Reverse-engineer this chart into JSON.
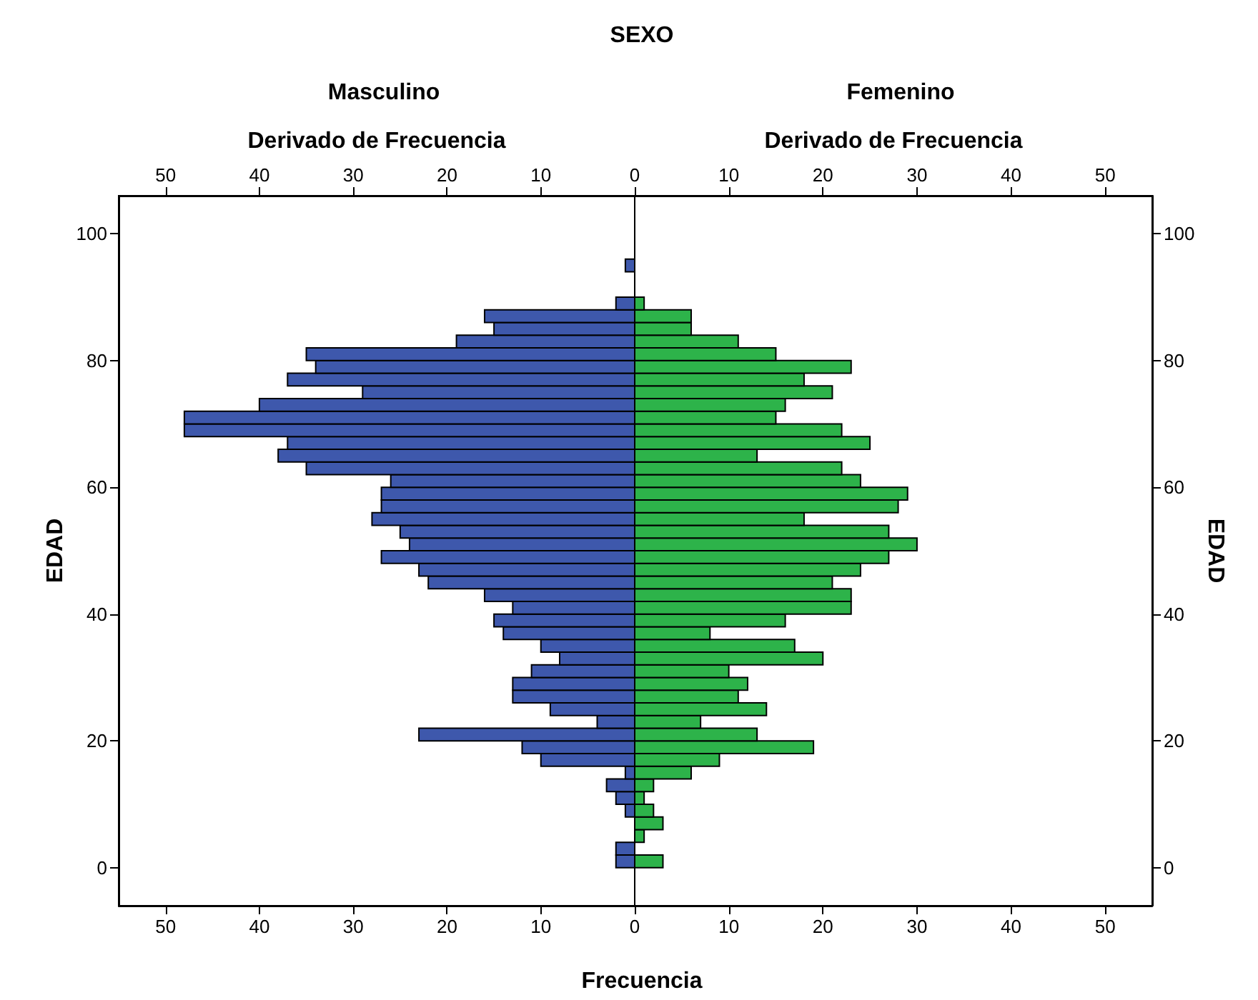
{
  "chart_data": [
    {
      "type": "histogram",
      "orientation": "horizontal",
      "title": "Masculino",
      "annotations": [
        "SEXO"
      ],
      "xlabel": "Frecuencia",
      "x2label": "Derivado de Frecuencia",
      "ylabel": "EDAD",
      "color": "#3e58ac",
      "bins": [
        0,
        2,
        4,
        6,
        8,
        10,
        12,
        14,
        16,
        18,
        20,
        22,
        24,
        26,
        28,
        30,
        32,
        34,
        36,
        38,
        40,
        42,
        44,
        46,
        48,
        50,
        52,
        54,
        56,
        58,
        60,
        62,
        64,
        66,
        68,
        70,
        72,
        74,
        76,
        78,
        80,
        82,
        84,
        86,
        88,
        90,
        92,
        94,
        96
      ],
      "values": [
        2,
        2,
        0,
        0,
        1,
        2,
        3,
        1,
        10,
        12,
        23,
        4,
        9,
        13,
        13,
        11,
        8,
        10,
        14,
        15,
        13,
        16,
        22,
        23,
        27,
        24,
        25,
        28,
        27,
        27,
        26,
        35,
        38,
        37,
        48,
        48,
        40,
        29,
        37,
        34,
        35,
        19,
        15,
        16,
        2,
        0,
        0,
        1
      ],
      "xlim": [
        55,
        0
      ],
      "xticks": [
        50,
        40,
        30,
        20,
        10,
        0
      ],
      "x2lim": [
        55,
        0
      ],
      "x2ticks": [
        50,
        40,
        30,
        20,
        10,
        0
      ],
      "ylim": [
        -6,
        106
      ],
      "yticks": [
        0,
        20,
        40,
        60,
        80,
        100
      ],
      "grid": false
    },
    {
      "type": "histogram",
      "orientation": "horizontal",
      "title": "Femenino",
      "x2label": "Derivado de Frecuencia",
      "ylabel": "EDAD",
      "color": "#2db34a",
      "bins": [
        0,
        2,
        4,
        6,
        8,
        10,
        12,
        14,
        16,
        18,
        20,
        22,
        24,
        26,
        28,
        30,
        32,
        34,
        36,
        38,
        40,
        42,
        44,
        46,
        48,
        50,
        52,
        54,
        56,
        58,
        60,
        62,
        64,
        66,
        68,
        70,
        72,
        74,
        76,
        78,
        80,
        82,
        84,
        86,
        88,
        90,
        92,
        94,
        96
      ],
      "values": [
        3,
        0,
        1,
        3,
        2,
        1,
        2,
        6,
        9,
        19,
        13,
        7,
        14,
        11,
        12,
        10,
        20,
        17,
        8,
        16,
        23,
        23,
        21,
        24,
        27,
        30,
        27,
        18,
        28,
        29,
        24,
        22,
        13,
        25,
        22,
        15,
        16,
        21,
        18,
        23,
        15,
        11,
        6,
        6,
        1,
        0,
        0,
        0
      ],
      "xlim": [
        0,
        55
      ],
      "xticks": [
        10,
        20,
        30,
        40,
        50
      ],
      "x2lim": [
        0,
        55
      ],
      "x2ticks": [
        10,
        20,
        30,
        40,
        50
      ],
      "ylim": [
        -6,
        106
      ],
      "yticks": [
        0,
        20,
        40,
        60,
        80,
        100
      ],
      "grid": false
    }
  ]
}
